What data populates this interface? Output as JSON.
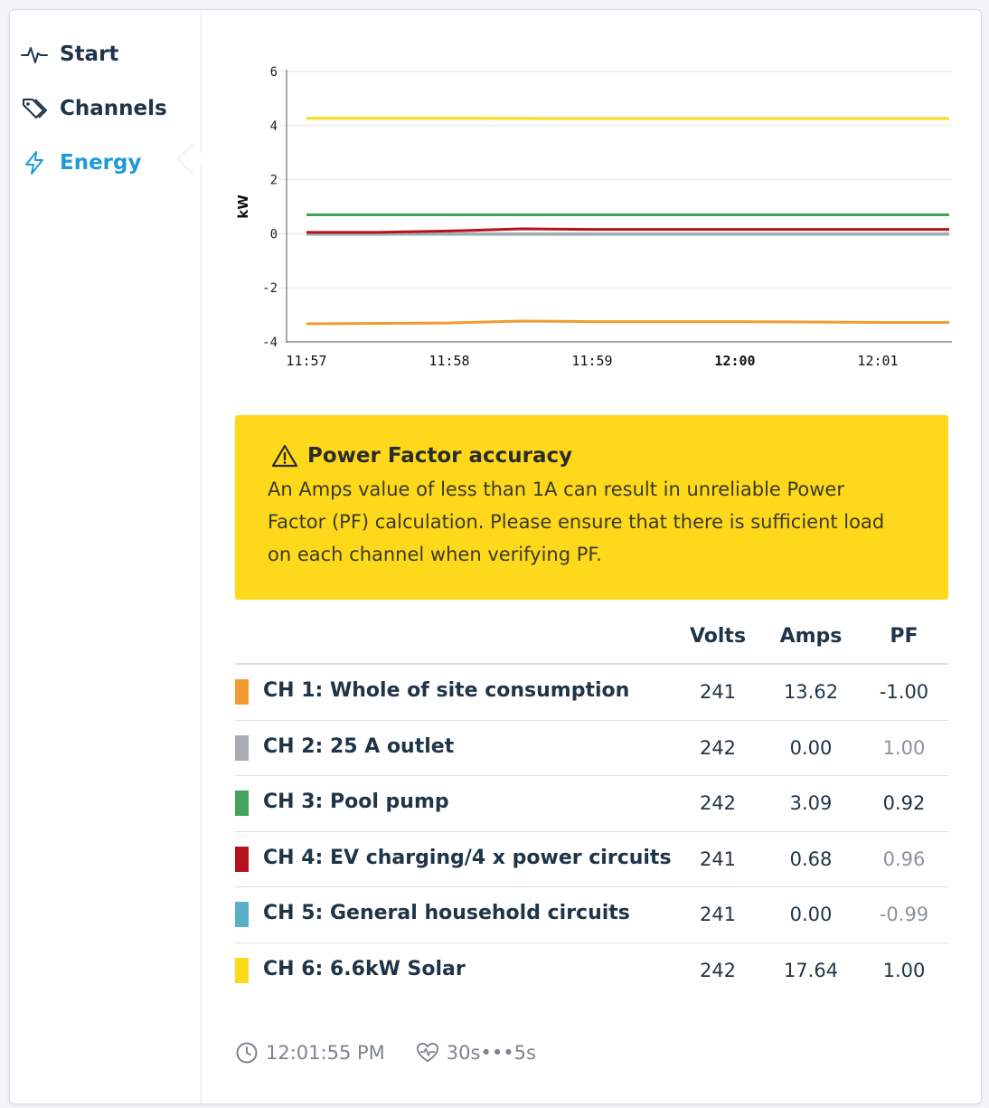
{
  "nav": {
    "items": [
      {
        "label": "Start",
        "icon": "pulse-icon"
      },
      {
        "label": "Channels",
        "icon": "tags-icon"
      },
      {
        "label": "Energy",
        "icon": "lightning-icon",
        "active": true
      }
    ]
  },
  "colors": {
    "accent": "#1e9ad6",
    "warning_bg": "#fed81b"
  },
  "chart_data": {
    "type": "line",
    "ylabel": "kW",
    "ylim": [
      -4,
      6
    ],
    "yticks": [
      "6",
      "4",
      "2",
      "0",
      "-2",
      "-4"
    ],
    "xticks": [
      "11:57",
      "11:58",
      "11:59",
      "12:00",
      "12:01"
    ],
    "xticks_bold": [
      false,
      false,
      false,
      true,
      false
    ],
    "xlim": [
      0,
      4.55
    ],
    "grid": true,
    "series": [
      {
        "channel": "CH 6",
        "color": "#fed81b",
        "x": [
          0,
          1,
          2,
          3,
          4,
          4.5
        ],
        "y": [
          4.27,
          4.27,
          4.26,
          4.26,
          4.26,
          4.26
        ]
      },
      {
        "channel": "CH 3",
        "color": "#43a35a",
        "x": [
          0,
          1,
          2,
          3,
          4,
          4.5
        ],
        "y": [
          0.7,
          0.7,
          0.7,
          0.7,
          0.7,
          0.7
        ]
      },
      {
        "channel": "CH 4",
        "color": "#b5121b",
        "x": [
          0,
          0.5,
          1,
          1.5,
          2,
          3,
          4,
          4.5
        ],
        "y": [
          0.05,
          0.05,
          0.1,
          0.18,
          0.16,
          0.16,
          0.16,
          0.16
        ]
      },
      {
        "channel": "CH 2",
        "color": "#a9adb1",
        "x": [
          0,
          4.5
        ],
        "y": [
          0.0,
          0.0
        ]
      },
      {
        "channel": "CH 5",
        "color": "#5aafc8",
        "x": [
          0,
          4.5
        ],
        "y": [
          -0.02,
          -0.02
        ]
      },
      {
        "channel": "CH 1",
        "color": "#f29b30",
        "x": [
          0,
          1,
          1.5,
          2,
          3,
          4,
          4.5
        ],
        "y": [
          -3.33,
          -3.3,
          -3.23,
          -3.25,
          -3.25,
          -3.28,
          -3.28
        ]
      }
    ]
  },
  "warning": {
    "title": "Power Factor accuracy",
    "body": "An Amps value of less than 1A can result in unreliable Power Factor (PF) calculation. Please ensure that there is sufficient load on each channel when verifying PF."
  },
  "table": {
    "headers": {
      "volts": "Volts",
      "amps": "Amps",
      "pf": "PF"
    },
    "rows": [
      {
        "name": "CH 1: Whole of site consumption",
        "color": "#f29b30",
        "volts": "241",
        "amps": "13.62",
        "pf": "-1.00",
        "pf_muted": false
      },
      {
        "name": "CH 2: 25 A outlet",
        "color": "#a9adb1",
        "volts": "242",
        "amps": "0.00",
        "pf": "1.00",
        "pf_muted": true
      },
      {
        "name": "CH 3: Pool pump",
        "color": "#43a35a",
        "volts": "242",
        "amps": "3.09",
        "pf": "0.92",
        "pf_muted": false
      },
      {
        "name": "CH 4: EV charging/4 x power circuits",
        "color": "#b5121b",
        "volts": "241",
        "amps": "0.68",
        "pf": "0.96",
        "pf_muted": true
      },
      {
        "name": "CH 5: General household circuits",
        "color": "#5aafc8",
        "volts": "241",
        "amps": "0.00",
        "pf": "-0.99",
        "pf_muted": true
      },
      {
        "name": "CH 6: 6.6kW Solar",
        "color": "#fed81b",
        "volts": "242",
        "amps": "17.64",
        "pf": "1.00",
        "pf_muted": false
      }
    ]
  },
  "footer": {
    "time": "12:01:55 PM",
    "interval": "30s•••5s"
  }
}
